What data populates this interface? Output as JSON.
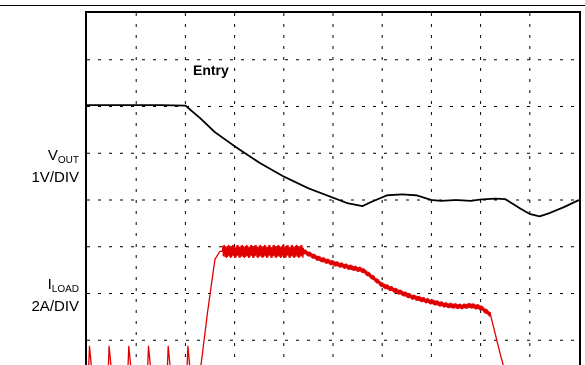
{
  "chart_data": {
    "type": "line",
    "title": "",
    "xlabel": "",
    "ylabel": "",
    "grid": true,
    "divisions": {
      "x": 10,
      "y": 8
    },
    "annotations": [
      {
        "text": "Entry"
      }
    ],
    "channels": [
      {
        "symbol": "V",
        "subscript": "OUT",
        "scale": "1V/DIV",
        "color": "#000000"
      },
      {
        "symbol": "I",
        "subscript": "LOAD",
        "scale": "2A/DIV",
        "color": "#e00000"
      }
    ],
    "series": [
      {
        "channel": 0,
        "x": [
          0,
          0.5,
          1.0,
          1.5,
          2.0,
          2.3,
          2.6,
          3.0,
          3.5,
          4.0,
          4.5,
          5.0,
          5.3,
          5.6,
          5.8,
          6.1,
          6.4,
          6.7,
          7.0,
          7.2,
          7.5,
          7.8,
          8.0,
          8.3,
          8.5,
          8.8,
          9.0,
          9.2,
          9.4,
          9.7,
          10.0
        ],
        "y": [
          6.03,
          6.03,
          6.03,
          6.03,
          6.02,
          5.75,
          5.45,
          5.15,
          4.8,
          4.5,
          4.25,
          4.05,
          3.93,
          3.87,
          3.97,
          4.1,
          4.12,
          4.1,
          4.0,
          3.98,
          4.0,
          3.98,
          4.01,
          4.03,
          4.02,
          3.82,
          3.7,
          3.65,
          3.72,
          3.85,
          4.0
        ]
      },
      {
        "channel": 1,
        "x": [
          0,
          2.3,
          2.45,
          2.6,
          2.7,
          3.0,
          3.5,
          4.0,
          4.4,
          4.7,
          5.0,
          5.3,
          5.6,
          5.8,
          6.0,
          6.3,
          6.6,
          7.0,
          7.3,
          7.6,
          7.8,
          8.0,
          8.2,
          8.4,
          8.5,
          10.0
        ],
        "y": [
          0.32,
          0.32,
          1.6,
          2.73,
          2.9,
          2.9,
          2.9,
          2.9,
          2.9,
          2.75,
          2.65,
          2.57,
          2.5,
          2.35,
          2.18,
          2.05,
          1.93,
          1.82,
          1.75,
          1.72,
          1.74,
          1.7,
          1.55,
          0.7,
          0.32,
          0.32
        ],
        "spikes_x": [
          0.05,
          0.45,
          0.85,
          1.25,
          1.65,
          2.05
        ],
        "spike_height": 0.55,
        "ripple": [
          {
            "from": 2.75,
            "to": 4.4,
            "amplitude": 0.13
          },
          {
            "from": 4.4,
            "to": 8.2,
            "amplitude": 0.05
          }
        ]
      }
    ]
  }
}
